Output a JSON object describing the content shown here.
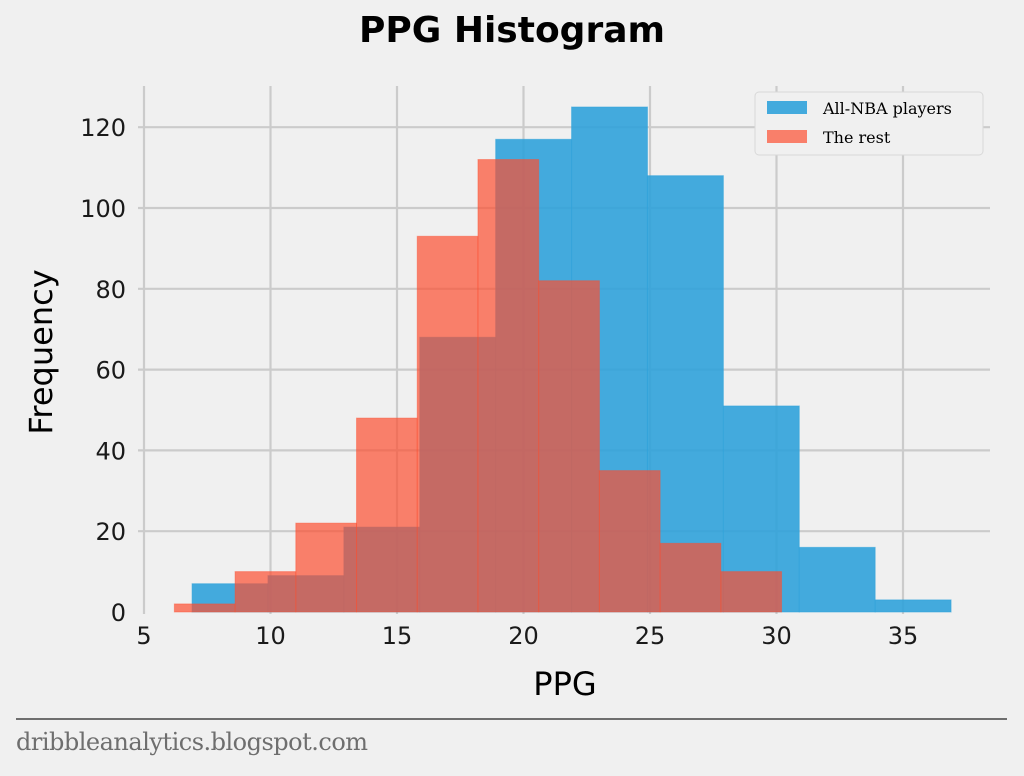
{
  "chart_data": {
    "type": "bar",
    "subtype": "overlapping-histogram",
    "title": "PPG Histogram",
    "xlabel": "PPG",
    "ylabel": "Frequency",
    "xlim": [
      4.9,
      38.5
    ],
    "ylim": [
      0,
      130
    ],
    "xticks": [
      5,
      10,
      15,
      20,
      25,
      30,
      35
    ],
    "yticks": [
      0,
      20,
      40,
      60,
      80,
      100,
      120
    ],
    "grid": true,
    "legend_position": "upper right",
    "series": [
      {
        "name": "All-NBA players",
        "color": "#30a2da",
        "alpha": 0.9,
        "bin_edges": [
          6.9,
          9.9,
          12.9,
          15.9,
          18.9,
          21.9,
          24.9,
          27.9,
          30.9,
          33.9,
          36.9
        ],
        "values": [
          7,
          9,
          21,
          68,
          117,
          125,
          108,
          51,
          16,
          3
        ]
      },
      {
        "name": "The rest",
        "color": "#fc4f30",
        "alpha": 0.7,
        "bin_edges": [
          6.2,
          8.6,
          11.0,
          13.4,
          15.8,
          18.2,
          20.6,
          23.0,
          25.4,
          27.8,
          30.2
        ],
        "values": [
          2,
          10,
          22,
          48,
          93,
          112,
          82,
          35,
          17,
          10
        ]
      }
    ]
  },
  "footer": {
    "source": "dribbleanalytics.blogspot.com"
  }
}
